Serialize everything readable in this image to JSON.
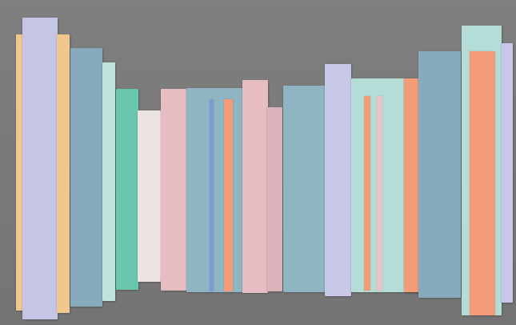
{
  "palette": {
    "background": "#7a7a7a",
    "lavender": "#c5c5e6",
    "peach": "#f0c88e",
    "blue_gray": "#87abbc",
    "mint": "#bfe4dd",
    "teal_green": "#68c7ad",
    "pale_rose": "#ece3e3",
    "rose": "#e7bcc3",
    "dusty_rose": "#ddb3bb",
    "blue_stripe": "#7d98d3",
    "coral": "#f39b79",
    "light_blue": "#8fb4c2",
    "pale_aqua": "#b5ddd7",
    "lilac": "#c7c8e7",
    "pale_pink": "#e7c2c7"
  },
  "panels": [
    {
      "name": "panel-peach-left",
      "color": "#f0c88e"
    },
    {
      "name": "panel-lavender-tall",
      "color": "#c5c5e6"
    },
    {
      "name": "panel-peach-back",
      "color": "#f0c88e"
    },
    {
      "name": "panel-blue-gray-1",
      "color": "#87abbc"
    },
    {
      "name": "panel-mint-1",
      "color": "#bfe4dd"
    },
    {
      "name": "panel-teal-green",
      "color": "#68c7ad"
    },
    {
      "name": "panel-pale-rose",
      "color": "#ece3e3"
    },
    {
      "name": "panel-rose-1",
      "color": "#e7bcc3"
    },
    {
      "name": "panel-light-blue-1",
      "color": "#8fb4c2"
    },
    {
      "name": "panel-rose-2",
      "color": "#e7bcc3"
    },
    {
      "name": "panel-dusty-rose",
      "color": "#ddb3bb"
    },
    {
      "name": "panel-light-blue-2",
      "color": "#8fb4c2"
    },
    {
      "name": "panel-lilac-1",
      "color": "#c7c8e7"
    },
    {
      "name": "panel-pale-aqua",
      "color": "#b5ddd7"
    },
    {
      "name": "panel-coral-edge",
      "color": "#f39b79"
    },
    {
      "name": "panel-blue-gray-2",
      "color": "#87abbc"
    },
    {
      "name": "panel-pale-aqua-right",
      "color": "#b5ddd7"
    },
    {
      "name": "panel-lilac-right-edge",
      "color": "#c7c8e7"
    }
  ],
  "stripes": [
    {
      "name": "stripe-blue",
      "color": "#7d98d3"
    },
    {
      "name": "stripe-coral-1",
      "color": "#f39b79"
    },
    {
      "name": "stripe-coral-2",
      "color": "#f39b79"
    },
    {
      "name": "stripe-pale-pink",
      "color": "#e7c2c7"
    },
    {
      "name": "stripe-coral-wide",
      "color": "#f39b79"
    }
  ]
}
